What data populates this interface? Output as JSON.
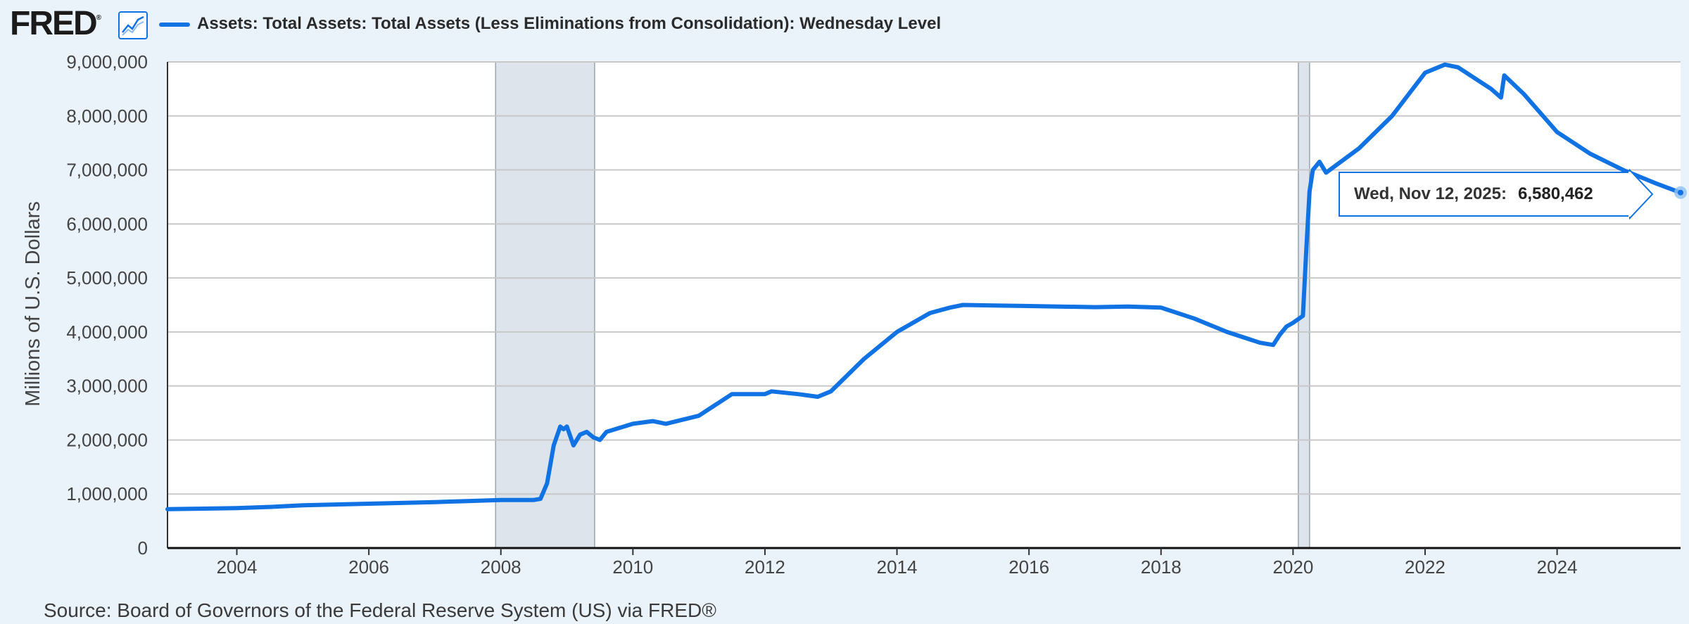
{
  "header": {
    "logo_text": "FRED",
    "logo_icon": "line-chart-icon",
    "series_label": "Assets: Total Assets: Total Assets (Less Eliminations from Consolidation): Wednesday Level"
  },
  "footer": {
    "source": "Source: Board of Governors of the Federal Reserve System (US) via FRED®"
  },
  "tooltip": {
    "date": "Wed, Nov 12, 2025:",
    "value": "6,580,462"
  },
  "colors": {
    "series": "#1172e4",
    "recession": "#dde4ec",
    "background": "#eaf2fa",
    "plot": "#ffffff",
    "grid": "#c8c8c8"
  },
  "chart_data": {
    "type": "line",
    "title": "",
    "xlabel": "",
    "ylabel": "Millions of U.S. Dollars",
    "xlim": [
      2002.95,
      2025.87
    ],
    "ylim": [
      0,
      9000000
    ],
    "x_ticks": [
      {
        "value": 2004,
        "label": "2004"
      },
      {
        "value": 2006,
        "label": "2006"
      },
      {
        "value": 2008,
        "label": "2008"
      },
      {
        "value": 2010,
        "label": "2010"
      },
      {
        "value": 2012,
        "label": "2012"
      },
      {
        "value": 2014,
        "label": "2014"
      },
      {
        "value": 2016,
        "label": "2016"
      },
      {
        "value": 2018,
        "label": "2018"
      },
      {
        "value": 2020,
        "label": "2020"
      },
      {
        "value": 2022,
        "label": "2022"
      },
      {
        "value": 2024,
        "label": "2024"
      }
    ],
    "y_ticks": [
      {
        "value": 0,
        "label": "0"
      },
      {
        "value": 1000000,
        "label": "1,000,000"
      },
      {
        "value": 2000000,
        "label": "2,000,000"
      },
      {
        "value": 3000000,
        "label": "3,000,000"
      },
      {
        "value": 4000000,
        "label": "4,000,000"
      },
      {
        "value": 5000000,
        "label": "5,000,000"
      },
      {
        "value": 6000000,
        "label": "6,000,000"
      },
      {
        "value": 7000000,
        "label": "7,000,000"
      },
      {
        "value": 8000000,
        "label": "8,000,000"
      },
      {
        "value": 9000000,
        "label": "9,000,000"
      }
    ],
    "grid": true,
    "recessions": [
      [
        2007.92,
        2009.42
      ],
      [
        2020.08,
        2020.25
      ]
    ],
    "series": [
      {
        "name": "Assets: Total Assets: Total Assets (Less Eliminations from Consolidation): Wednesday Level",
        "x": [
          2002.95,
          2003.5,
          2004.0,
          2004.5,
          2005.0,
          2006.0,
          2007.0,
          2007.5,
          2008.0,
          2008.5,
          2008.6,
          2008.7,
          2008.8,
          2008.9,
          2008.95,
          2009.0,
          2009.1,
          2009.2,
          2009.3,
          2009.4,
          2009.5,
          2009.6,
          2010.0,
          2010.3,
          2010.5,
          2011.0,
          2011.5,
          2011.7,
          2012.0,
          2012.1,
          2012.5,
          2012.8,
          2013.0,
          2013.5,
          2014.0,
          2014.5,
          2014.8,
          2015.0,
          2016.0,
          2017.0,
          2017.5,
          2018.0,
          2018.5,
          2019.0,
          2019.5,
          2019.7,
          2019.8,
          2019.9,
          2020.0,
          2020.15,
          2020.2,
          2020.25,
          2020.3,
          2020.4,
          2020.5,
          2021.0,
          2021.5,
          2022.0,
          2022.3,
          2022.5,
          2023.0,
          2023.15,
          2023.2,
          2023.5,
          2024.0,
          2024.5,
          2025.0,
          2025.5,
          2025.87
        ],
        "y": [
          720000,
          730000,
          740000,
          760000,
          790000,
          820000,
          850000,
          870000,
          890000,
          890000,
          910000,
          1200000,
          1900000,
          2250000,
          2200000,
          2250000,
          1900000,
          2100000,
          2150000,
          2050000,
          2000000,
          2150000,
          2300000,
          2350000,
          2300000,
          2450000,
          2850000,
          2850000,
          2850000,
          2900000,
          2850000,
          2800000,
          2900000,
          3500000,
          4000000,
          4350000,
          4450000,
          4500000,
          4480000,
          4460000,
          4470000,
          4450000,
          4250000,
          4000000,
          3800000,
          3760000,
          3950000,
          4100000,
          4170000,
          4300000,
          5500000,
          6600000,
          7000000,
          7150000,
          6950000,
          7400000,
          8000000,
          8800000,
          8950000,
          8900000,
          8500000,
          8340000,
          8750000,
          8400000,
          7700000,
          7300000,
          7000000,
          6750000,
          6580462
        ]
      }
    ]
  }
}
